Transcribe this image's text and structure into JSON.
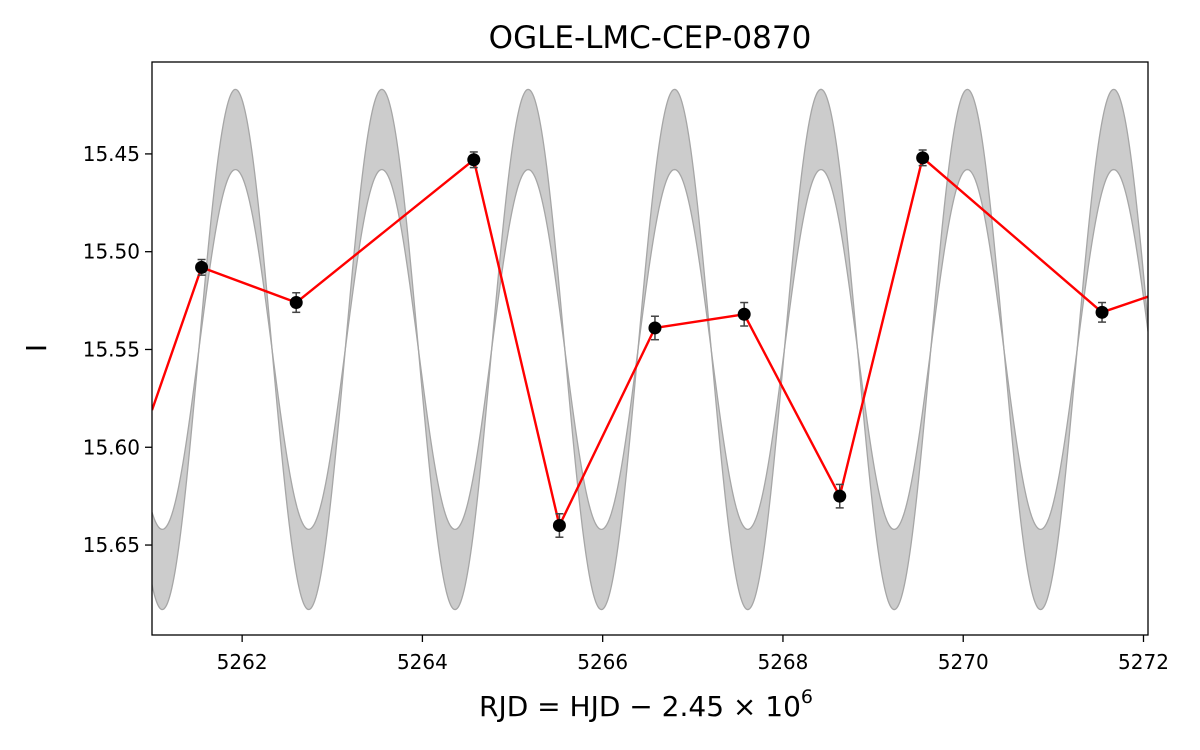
{
  "chart_data": {
    "type": "scatter",
    "title": "OGLE-LMC-CEP-0870",
    "xlabel": "RJD = HJD − 2.45 × 10",
    "xlabel_exponent": "6",
    "ylabel": "I",
    "xlim": [
      5261.0,
      5272.05
    ],
    "ylim": [
      15.696,
      15.403
    ],
    "y_inverted": true,
    "grid": false,
    "x_ticks": [
      5262,
      5264,
      5266,
      5268,
      5270,
      5272
    ],
    "y_ticks": [
      15.45,
      15.5,
      15.55,
      15.6,
      15.65
    ],
    "y_tick_labels": [
      "15.45",
      "15.50",
      "15.55",
      "15.60",
      "15.65"
    ],
    "series": [
      {
        "kind": "points_with_errorbars_connected",
        "x": [
          5261.55,
          5262.6,
          5264.57,
          5265.52,
          5266.58,
          5267.57,
          5268.63,
          5269.55,
          5271.54
        ],
        "y": [
          15.508,
          15.526,
          15.453,
          15.64,
          15.539,
          15.532,
          15.625,
          15.452,
          15.531
        ],
        "yerr": [
          0.004,
          0.005,
          0.004,
          0.006,
          0.006,
          0.006,
          0.006,
          0.004,
          0.005
        ],
        "line_extends_to": [
          [
            5261.0,
            15.581
          ],
          [
            5272.05,
            15.523
          ]
        ],
        "marker_color": "#000000",
        "line_color": "#ff0000"
      },
      {
        "kind": "model_band",
        "period": 1.624,
        "phase_ref_x": 5261.52,
        "center_mag": 15.55,
        "outer_amplitude": 0.133,
        "inner_amplitude": 0.092,
        "fill_color": "#cccccc",
        "edge_color": "#a6a6a6"
      }
    ]
  }
}
